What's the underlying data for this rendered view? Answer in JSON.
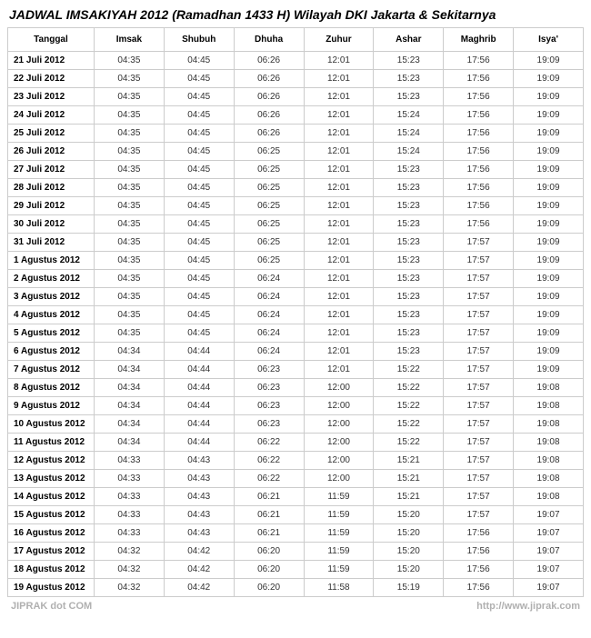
{
  "title": "JADWAL IMSAKIYAH 2012 (Ramadhan 1433 H) Wilayah DKI Jakarta & Sekitarnya",
  "columns": [
    "Tanggal",
    "Imsak",
    "Shubuh",
    "Dhuha",
    "Zuhur",
    "Ashar",
    "Maghrib",
    "Isya'"
  ],
  "rows": [
    [
      "21 Juli 2012",
      "04:35",
      "04:45",
      "06:26",
      "12:01",
      "15:23",
      "17:56",
      "19:09"
    ],
    [
      "22 Juli 2012",
      "04:35",
      "04:45",
      "06:26",
      "12:01",
      "15:23",
      "17:56",
      "19:09"
    ],
    [
      "23 Juli 2012",
      "04:35",
      "04:45",
      "06:26",
      "12:01",
      "15:23",
      "17:56",
      "19:09"
    ],
    [
      "24 Juli 2012",
      "04:35",
      "04:45",
      "06:26",
      "12:01",
      "15:24",
      "17:56",
      "19:09"
    ],
    [
      "25 Juli 2012",
      "04:35",
      "04:45",
      "06:26",
      "12:01",
      "15:24",
      "17:56",
      "19:09"
    ],
    [
      "26 Juli 2012",
      "04:35",
      "04:45",
      "06:25",
      "12:01",
      "15:24",
      "17:56",
      "19:09"
    ],
    [
      "27 Juli 2012",
      "04:35",
      "04:45",
      "06:25",
      "12:01",
      "15:23",
      "17:56",
      "19:09"
    ],
    [
      "28 Juli 2012",
      "04:35",
      "04:45",
      "06:25",
      "12:01",
      "15:23",
      "17:56",
      "19:09"
    ],
    [
      "29 Juli 2012",
      "04:35",
      "04:45",
      "06:25",
      "12:01",
      "15:23",
      "17:56",
      "19:09"
    ],
    [
      "30 Juli 2012",
      "04:35",
      "04:45",
      "06:25",
      "12:01",
      "15:23",
      "17:56",
      "19:09"
    ],
    [
      "31 Juli 2012",
      "04:35",
      "04:45",
      "06:25",
      "12:01",
      "15:23",
      "17:57",
      "19:09"
    ],
    [
      "1 Agustus 2012",
      "04:35",
      "04:45",
      "06:25",
      "12:01",
      "15:23",
      "17:57",
      "19:09"
    ],
    [
      "2 Agustus 2012",
      "04:35",
      "04:45",
      "06:24",
      "12:01",
      "15:23",
      "17:57",
      "19:09"
    ],
    [
      "3 Agustus 2012",
      "04:35",
      "04:45",
      "06:24",
      "12:01",
      "15:23",
      "17:57",
      "19:09"
    ],
    [
      "4 Agustus 2012",
      "04:35",
      "04:45",
      "06:24",
      "12:01",
      "15:23",
      "17:57",
      "19:09"
    ],
    [
      "5 Agustus 2012",
      "04:35",
      "04:45",
      "06:24",
      "12:01",
      "15:23",
      "17:57",
      "19:09"
    ],
    [
      "6 Agustus 2012",
      "04:34",
      "04:44",
      "06:24",
      "12:01",
      "15:23",
      "17:57",
      "19:09"
    ],
    [
      "7 Agustus 2012",
      "04:34",
      "04:44",
      "06:23",
      "12:01",
      "15:22",
      "17:57",
      "19:09"
    ],
    [
      "8 Agustus 2012",
      "04:34",
      "04:44",
      "06:23",
      "12:00",
      "15:22",
      "17:57",
      "19:08"
    ],
    [
      "9 Agustus 2012",
      "04:34",
      "04:44",
      "06:23",
      "12:00",
      "15:22",
      "17:57",
      "19:08"
    ],
    [
      "10 Agustus 2012",
      "04:34",
      "04:44",
      "06:23",
      "12:00",
      "15:22",
      "17:57",
      "19:08"
    ],
    [
      "11 Agustus 2012",
      "04:34",
      "04:44",
      "06:22",
      "12:00",
      "15:22",
      "17:57",
      "19:08"
    ],
    [
      "12 Agustus 2012",
      "04:33",
      "04:43",
      "06:22",
      "12:00",
      "15:21",
      "17:57",
      "19:08"
    ],
    [
      "13 Agustus 2012",
      "04:33",
      "04:43",
      "06:22",
      "12:00",
      "15:21",
      "17:57",
      "19:08"
    ],
    [
      "14 Agustus 2012",
      "04:33",
      "04:43",
      "06:21",
      "11:59",
      "15:21",
      "17:57",
      "19:08"
    ],
    [
      "15 Agustus 2012",
      "04:33",
      "04:43",
      "06:21",
      "11:59",
      "15:20",
      "17:57",
      "19:07"
    ],
    [
      "16 Agustus 2012",
      "04:33",
      "04:43",
      "06:21",
      "11:59",
      "15:20",
      "17:56",
      "19:07"
    ],
    [
      "17 Agustus 2012",
      "04:32",
      "04:42",
      "06:20",
      "11:59",
      "15:20",
      "17:56",
      "19:07"
    ],
    [
      "18 Agustus 2012",
      "04:32",
      "04:42",
      "06:20",
      "11:59",
      "15:20",
      "17:56",
      "19:07"
    ],
    [
      "19 Agustus 2012",
      "04:32",
      "04:42",
      "06:20",
      "11:58",
      "15:19",
      "17:56",
      "19:07"
    ]
  ],
  "footer": {
    "left": "JIPRAK dot COM",
    "right": "http://www.jiprak.com"
  },
  "style": {
    "border_color": "#cccccc",
    "text_color": "#333333",
    "header_color": "#000000",
    "footer_color": "#b0b0b0",
    "background": "#ffffff",
    "title_fontsize": 14,
    "cell_fontsize": 10
  }
}
